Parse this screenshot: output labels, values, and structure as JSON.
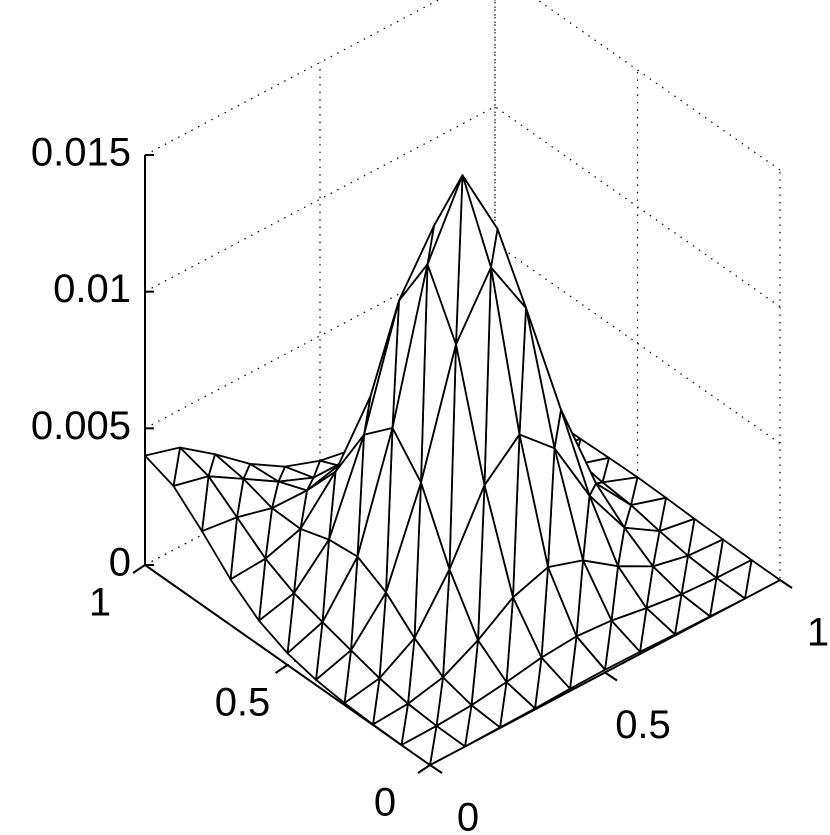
{
  "chart_data": {
    "type": "mesh",
    "x": [
      0,
      0.1,
      0.2,
      0.3,
      0.4,
      0.5,
      0.6,
      0.7,
      0.8,
      0.9,
      1
    ],
    "y": [
      0,
      0.1,
      0.2,
      0.3,
      0.4,
      0.5,
      0.6,
      0.7,
      0.8,
      0.9,
      1
    ],
    "z": [
      [
        0,
        0,
        2e-05,
        4e-05,
        8e-05,
        0.0001,
        8e-05,
        4e-05,
        2e-05,
        0,
        0
      ],
      [
        0,
        2e-05,
        0.0001,
        0.00027,
        0.00049,
        0.00059,
        0.00049,
        0.00027,
        0.0001,
        2e-05,
        0
      ],
      [
        2e-05,
        0.0001,
        0.00039,
        0.00107,
        0.00196,
        0.00239,
        0.00196,
        0.00107,
        0.00039,
        0.0001,
        2e-05
      ],
      [
        7e-05,
        0.0003,
        0.00109,
        0.00293,
        0.00533,
        0.00651,
        0.00533,
        0.00292,
        0.00107,
        0.00027,
        4e-05
      ],
      [
        0.00019,
        0.00059,
        0.00203,
        0.00537,
        0.00975,
        0.01189,
        0.00973,
        0.00533,
        0.00196,
        0.00049,
        8e-05
      ],
      [
        0.00043,
        0.00089,
        0.00261,
        0.00664,
        0.01195,
        0.01453,
        0.01189,
        0.00651,
        0.00239,
        0.00059,
        0.0001
      ],
      [
        0.00089,
        0.00122,
        0.0025,
        0.00566,
        0.00989,
        0.01195,
        0.00975,
        0.00534,
        0.00196,
        0.00049,
        8e-05
      ],
      [
        0.00167,
        0.00175,
        0.00216,
        0.00358,
        0.00566,
        0.00664,
        0.00537,
        0.00293,
        0.00107,
        0.00027,
        4e-05
      ],
      [
        0.0027,
        0.00253,
        0.00219,
        0.00216,
        0.0025,
        0.00261,
        0.00203,
        0.00109,
        0.00039,
        0.0001,
        2e-05
      ],
      [
        0.00362,
        0.0033,
        0.00253,
        0.00175,
        0.00122,
        0.00089,
        0.00059,
        0.0003,
        0.0001,
        2e-05,
        0
      ],
      [
        0.004,
        0.00362,
        0.0027,
        0.00167,
        0.00089,
        0.00043,
        0.00019,
        7e-05,
        2e-05,
        0,
        0
      ]
    ],
    "xlim": [
      0,
      1
    ],
    "ylim": [
      0,
      1
    ],
    "zlim": [
      0,
      0.015
    ],
    "xticks": [
      0,
      0.5,
      1
    ],
    "yticks": [
      0,
      0.5,
      1
    ],
    "zticks": [
      0,
      0.005,
      0.01,
      0.015
    ],
    "grid": true,
    "color": "#000000"
  }
}
